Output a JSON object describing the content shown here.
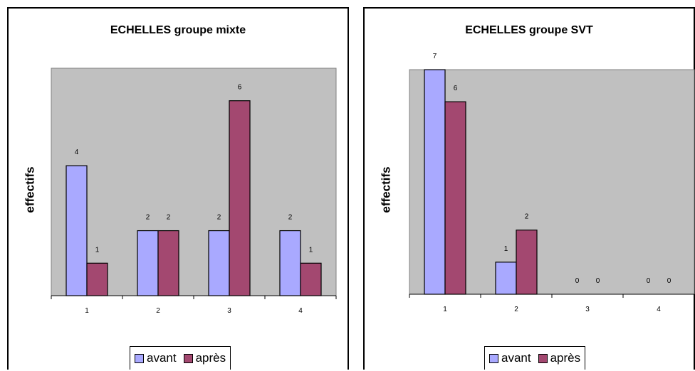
{
  "chart_data": [
    {
      "type": "bar",
      "title": "ECHELLES groupe mixte",
      "xlabel": "",
      "ylabel": "effectifs",
      "categories": [
        "1",
        "2",
        "3",
        "4"
      ],
      "series": [
        {
          "name": "avant",
          "values": [
            4,
            2,
            2,
            2
          ]
        },
        {
          "name": "après",
          "values": [
            1,
            2,
            6,
            1
          ]
        }
      ],
      "ylim": [
        0,
        7
      ],
      "grid": false,
      "legend_position": "bottom",
      "data_labels": true
    },
    {
      "type": "bar",
      "title": "ECHELLES groupe SVT",
      "xlabel": "",
      "ylabel": "effectifs",
      "categories": [
        "1",
        "2",
        "3",
        "4"
      ],
      "series": [
        {
          "name": "avant",
          "values": [
            7,
            1,
            0,
            0
          ]
        },
        {
          "name": "après",
          "values": [
            6,
            2,
            0,
            0
          ]
        }
      ],
      "ylim": [
        0,
        7
      ],
      "grid": false,
      "legend_position": "bottom",
      "data_labels": true
    }
  ],
  "colors": {
    "avant": "#a9a9ff",
    "apres": "#a34870",
    "plot_area": "#c0c0c0"
  }
}
